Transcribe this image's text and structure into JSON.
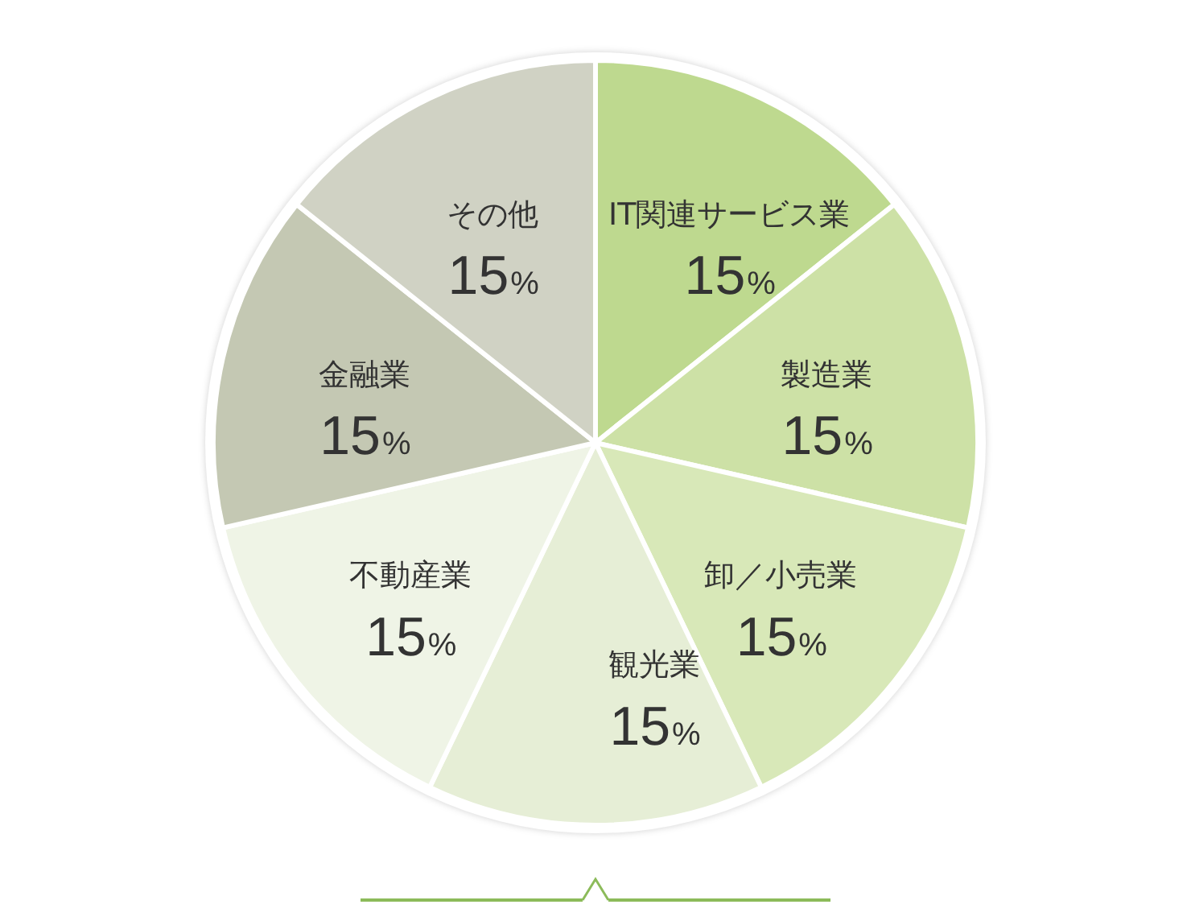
{
  "chart_data": {
    "type": "pie",
    "categories": [
      "IT関連サービス業",
      "製造業",
      "卸／小売業",
      "観光業",
      "不動産業",
      "金融業",
      "その他"
    ],
    "values": [
      15,
      15,
      15,
      15,
      15,
      15,
      15
    ],
    "colors": [
      "#bed98f",
      "#cde1a6",
      "#d8e8b8",
      "#e6eed6",
      "#eff4e6",
      "#c4c8b3",
      "#d0d2c4"
    ],
    "value_labels": [
      "15%",
      "15%",
      "15%",
      "15%",
      "15%",
      "15%",
      "15%"
    ],
    "legend": false
  }
}
